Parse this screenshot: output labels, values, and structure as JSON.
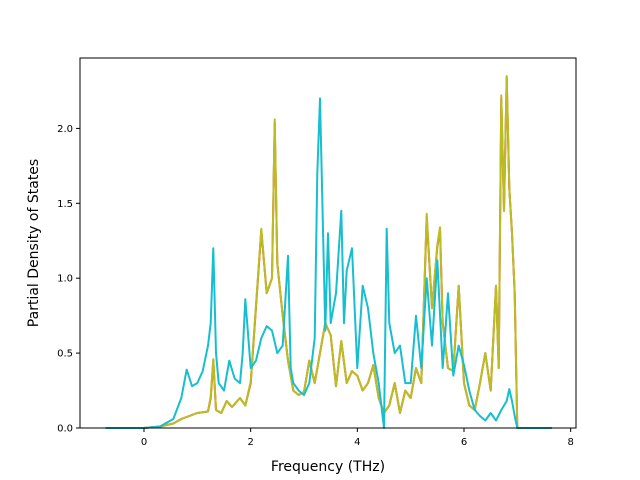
{
  "chart_data": {
    "type": "line",
    "title": "",
    "xlabel": "Frequency (THz)",
    "ylabel": "Partial Density of States",
    "xlim": [
      -1.2,
      8.1
    ],
    "ylim": [
      0,
      2.47
    ],
    "xticks": [
      0,
      2,
      4,
      6,
      8
    ],
    "yticks": [
      0.0,
      0.5,
      1.0,
      1.5,
      2.0
    ],
    "xtick_labels": [
      "0",
      "2",
      "4",
      "6",
      "8"
    ],
    "ytick_labels": [
      "0.0",
      "0.5",
      "1.0",
      "1.5",
      "2.0"
    ],
    "grid": false,
    "legend": "none",
    "series": [
      {
        "color": "#d62728",
        "x": [
          -0.72,
          0.0,
          0.3,
          0.55,
          0.7,
          1.0,
          1.2,
          1.25,
          1.3,
          1.35,
          1.45,
          1.55,
          1.65,
          1.8,
          1.9,
          2.0,
          2.2,
          2.3,
          2.4,
          2.45,
          2.5,
          2.6,
          2.7,
          2.8,
          2.9,
          3.0,
          3.1,
          3.2,
          3.3,
          3.4,
          3.5,
          3.6,
          3.7,
          3.8,
          3.9,
          4.0,
          4.1,
          4.2,
          4.3,
          4.4,
          4.5,
          4.6,
          4.7,
          4.8,
          4.9,
          5.0,
          5.1,
          5.2,
          5.3,
          5.4,
          5.5,
          5.55,
          5.6,
          5.7,
          5.8,
          5.9,
          6.0,
          6.1,
          6.2,
          6.3,
          6.4,
          6.5,
          6.6,
          6.65,
          6.7,
          6.75,
          6.8,
          6.85,
          6.9,
          6.95,
          7.0,
          7.1,
          7.65
        ],
        "y": [
          0.0,
          0.0,
          0.01,
          0.03,
          0.06,
          0.1,
          0.11,
          0.2,
          0.45,
          0.12,
          0.1,
          0.18,
          0.14,
          0.2,
          0.15,
          0.3,
          1.32,
          0.9,
          1.0,
          2.04,
          1.1,
          0.75,
          0.45,
          0.25,
          0.22,
          0.24,
          0.45,
          0.3,
          0.5,
          0.7,
          0.62,
          0.28,
          0.58,
          0.3,
          0.38,
          0.35,
          0.25,
          0.3,
          0.42,
          0.2,
          0.1,
          0.15,
          0.3,
          0.1,
          0.25,
          0.2,
          0.4,
          0.3,
          1.41,
          0.8,
          1.21,
          1.33,
          0.7,
          0.4,
          0.38,
          0.95,
          0.3,
          0.15,
          0.12,
          0.3,
          0.5,
          0.25,
          0.95,
          0.4,
          2.2,
          1.45,
          2.34,
          1.6,
          1.3,
          0.9,
          0.0,
          0.0,
          0.0
        ]
      },
      {
        "color": "#bcbd22",
        "x": [
          -0.72,
          0.0,
          0.3,
          0.55,
          0.7,
          1.0,
          1.2,
          1.25,
          1.3,
          1.35,
          1.45,
          1.55,
          1.65,
          1.8,
          1.9,
          2.0,
          2.2,
          2.3,
          2.4,
          2.45,
          2.5,
          2.6,
          2.7,
          2.8,
          2.9,
          3.0,
          3.1,
          3.2,
          3.3,
          3.4,
          3.5,
          3.6,
          3.7,
          3.8,
          3.9,
          4.0,
          4.1,
          4.2,
          4.3,
          4.4,
          4.5,
          4.6,
          4.7,
          4.8,
          4.9,
          5.0,
          5.1,
          5.2,
          5.3,
          5.4,
          5.5,
          5.55,
          5.6,
          5.7,
          5.8,
          5.9,
          6.0,
          6.1,
          6.2,
          6.3,
          6.4,
          6.5,
          6.6,
          6.65,
          6.7,
          6.75,
          6.8,
          6.85,
          6.9,
          6.95,
          7.0,
          7.1,
          7.65
        ],
        "y": [
          0.0,
          0.0,
          0.01,
          0.03,
          0.06,
          0.1,
          0.11,
          0.21,
          0.46,
          0.12,
          0.1,
          0.18,
          0.14,
          0.2,
          0.15,
          0.31,
          1.33,
          0.9,
          1.0,
          2.06,
          1.1,
          0.75,
          0.45,
          0.25,
          0.22,
          0.24,
          0.45,
          0.3,
          0.5,
          0.7,
          0.62,
          0.28,
          0.58,
          0.3,
          0.38,
          0.35,
          0.25,
          0.3,
          0.42,
          0.2,
          0.1,
          0.15,
          0.3,
          0.1,
          0.25,
          0.2,
          0.4,
          0.3,
          1.43,
          0.8,
          1.22,
          1.34,
          0.7,
          0.4,
          0.38,
          0.95,
          0.3,
          0.15,
          0.12,
          0.3,
          0.5,
          0.25,
          0.95,
          0.4,
          2.22,
          1.45,
          2.35,
          1.6,
          1.3,
          0.9,
          0.0,
          0.0,
          0.0
        ]
      },
      {
        "color": "#17becf",
        "x": [
          -0.72,
          0.0,
          0.3,
          0.55,
          0.7,
          0.8,
          0.9,
          1.0,
          1.1,
          1.2,
          1.25,
          1.3,
          1.35,
          1.4,
          1.5,
          1.6,
          1.7,
          1.8,
          1.85,
          1.9,
          2.0,
          2.1,
          2.2,
          2.3,
          2.4,
          2.5,
          2.6,
          2.7,
          2.75,
          2.8,
          2.9,
          3.0,
          3.1,
          3.2,
          3.25,
          3.3,
          3.4,
          3.45,
          3.5,
          3.6,
          3.7,
          3.75,
          3.8,
          3.9,
          4.0,
          4.1,
          4.2,
          4.3,
          4.4,
          4.5,
          4.55,
          4.6,
          4.7,
          4.8,
          4.9,
          5.0,
          5.1,
          5.2,
          5.3,
          5.4,
          5.5,
          5.6,
          5.7,
          5.8,
          5.9,
          6.0,
          6.1,
          6.2,
          6.3,
          6.4,
          6.5,
          6.6,
          6.7,
          6.8,
          6.85,
          6.9,
          6.95,
          7.0,
          7.1,
          7.65
        ],
        "y": [
          0.0,
          0.0,
          0.01,
          0.06,
          0.2,
          0.39,
          0.28,
          0.3,
          0.38,
          0.55,
          0.7,
          1.2,
          0.5,
          0.3,
          0.25,
          0.45,
          0.33,
          0.3,
          0.5,
          0.86,
          0.4,
          0.45,
          0.6,
          0.68,
          0.65,
          0.5,
          0.55,
          1.15,
          0.4,
          0.3,
          0.25,
          0.22,
          0.3,
          0.6,
          1.7,
          2.2,
          0.65,
          1.3,
          0.7,
          0.9,
          1.45,
          0.7,
          1.05,
          1.2,
          0.4,
          0.95,
          0.8,
          0.5,
          0.3,
          0.0,
          1.33,
          0.7,
          0.5,
          0.55,
          0.3,
          0.3,
          0.75,
          0.4,
          1.0,
          0.55,
          1.12,
          0.4,
          0.9,
          0.35,
          0.55,
          0.42,
          0.25,
          0.12,
          0.08,
          0.05,
          0.1,
          0.05,
          0.12,
          0.18,
          0.26,
          0.18,
          0.08,
          0.0,
          0.0,
          0.0
        ]
      }
    ]
  }
}
